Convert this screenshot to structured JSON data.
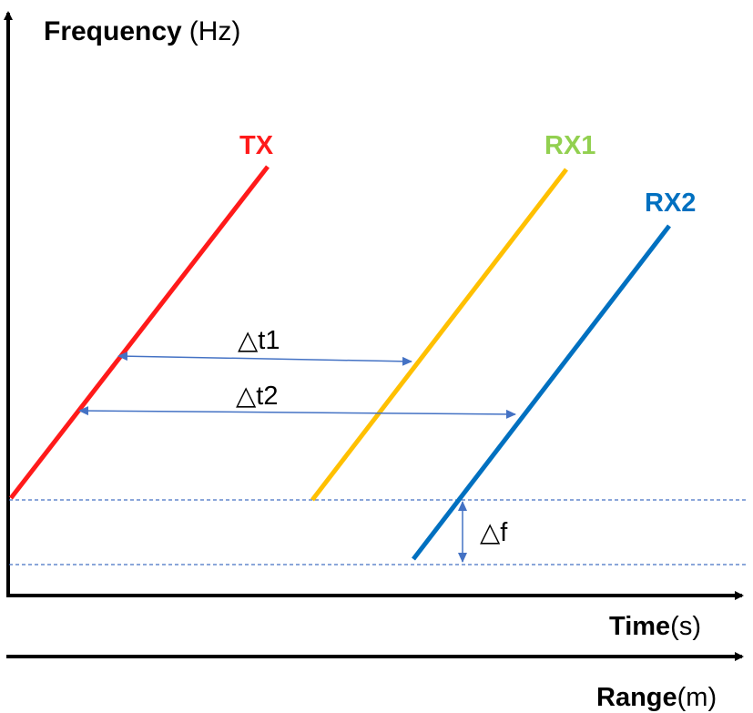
{
  "axes": {
    "y_label_bold": "Frequency",
    "y_label_unit": "(Hz)",
    "x_label_bold": "Time",
    "x_label_unit": "(s)",
    "x2_label_bold": "Range",
    "x2_label_unit": "(m)"
  },
  "signals": [
    {
      "name": "TX",
      "color": "#ff1a1a",
      "label_color": "#ff1a1a"
    },
    {
      "name": "RX1",
      "color": "#ffc000",
      "label_color": "#92d050"
    },
    {
      "name": "RX2",
      "color": "#0070c0",
      "label_color": "#0070c0"
    }
  ],
  "annotations": {
    "delta_t1": "△t1",
    "delta_t2": "△t2",
    "delta_f": "△f"
  },
  "colors": {
    "axis": "#000000",
    "annotation_arrow": "#4472c4",
    "dashed_line": "#4472c4"
  }
}
